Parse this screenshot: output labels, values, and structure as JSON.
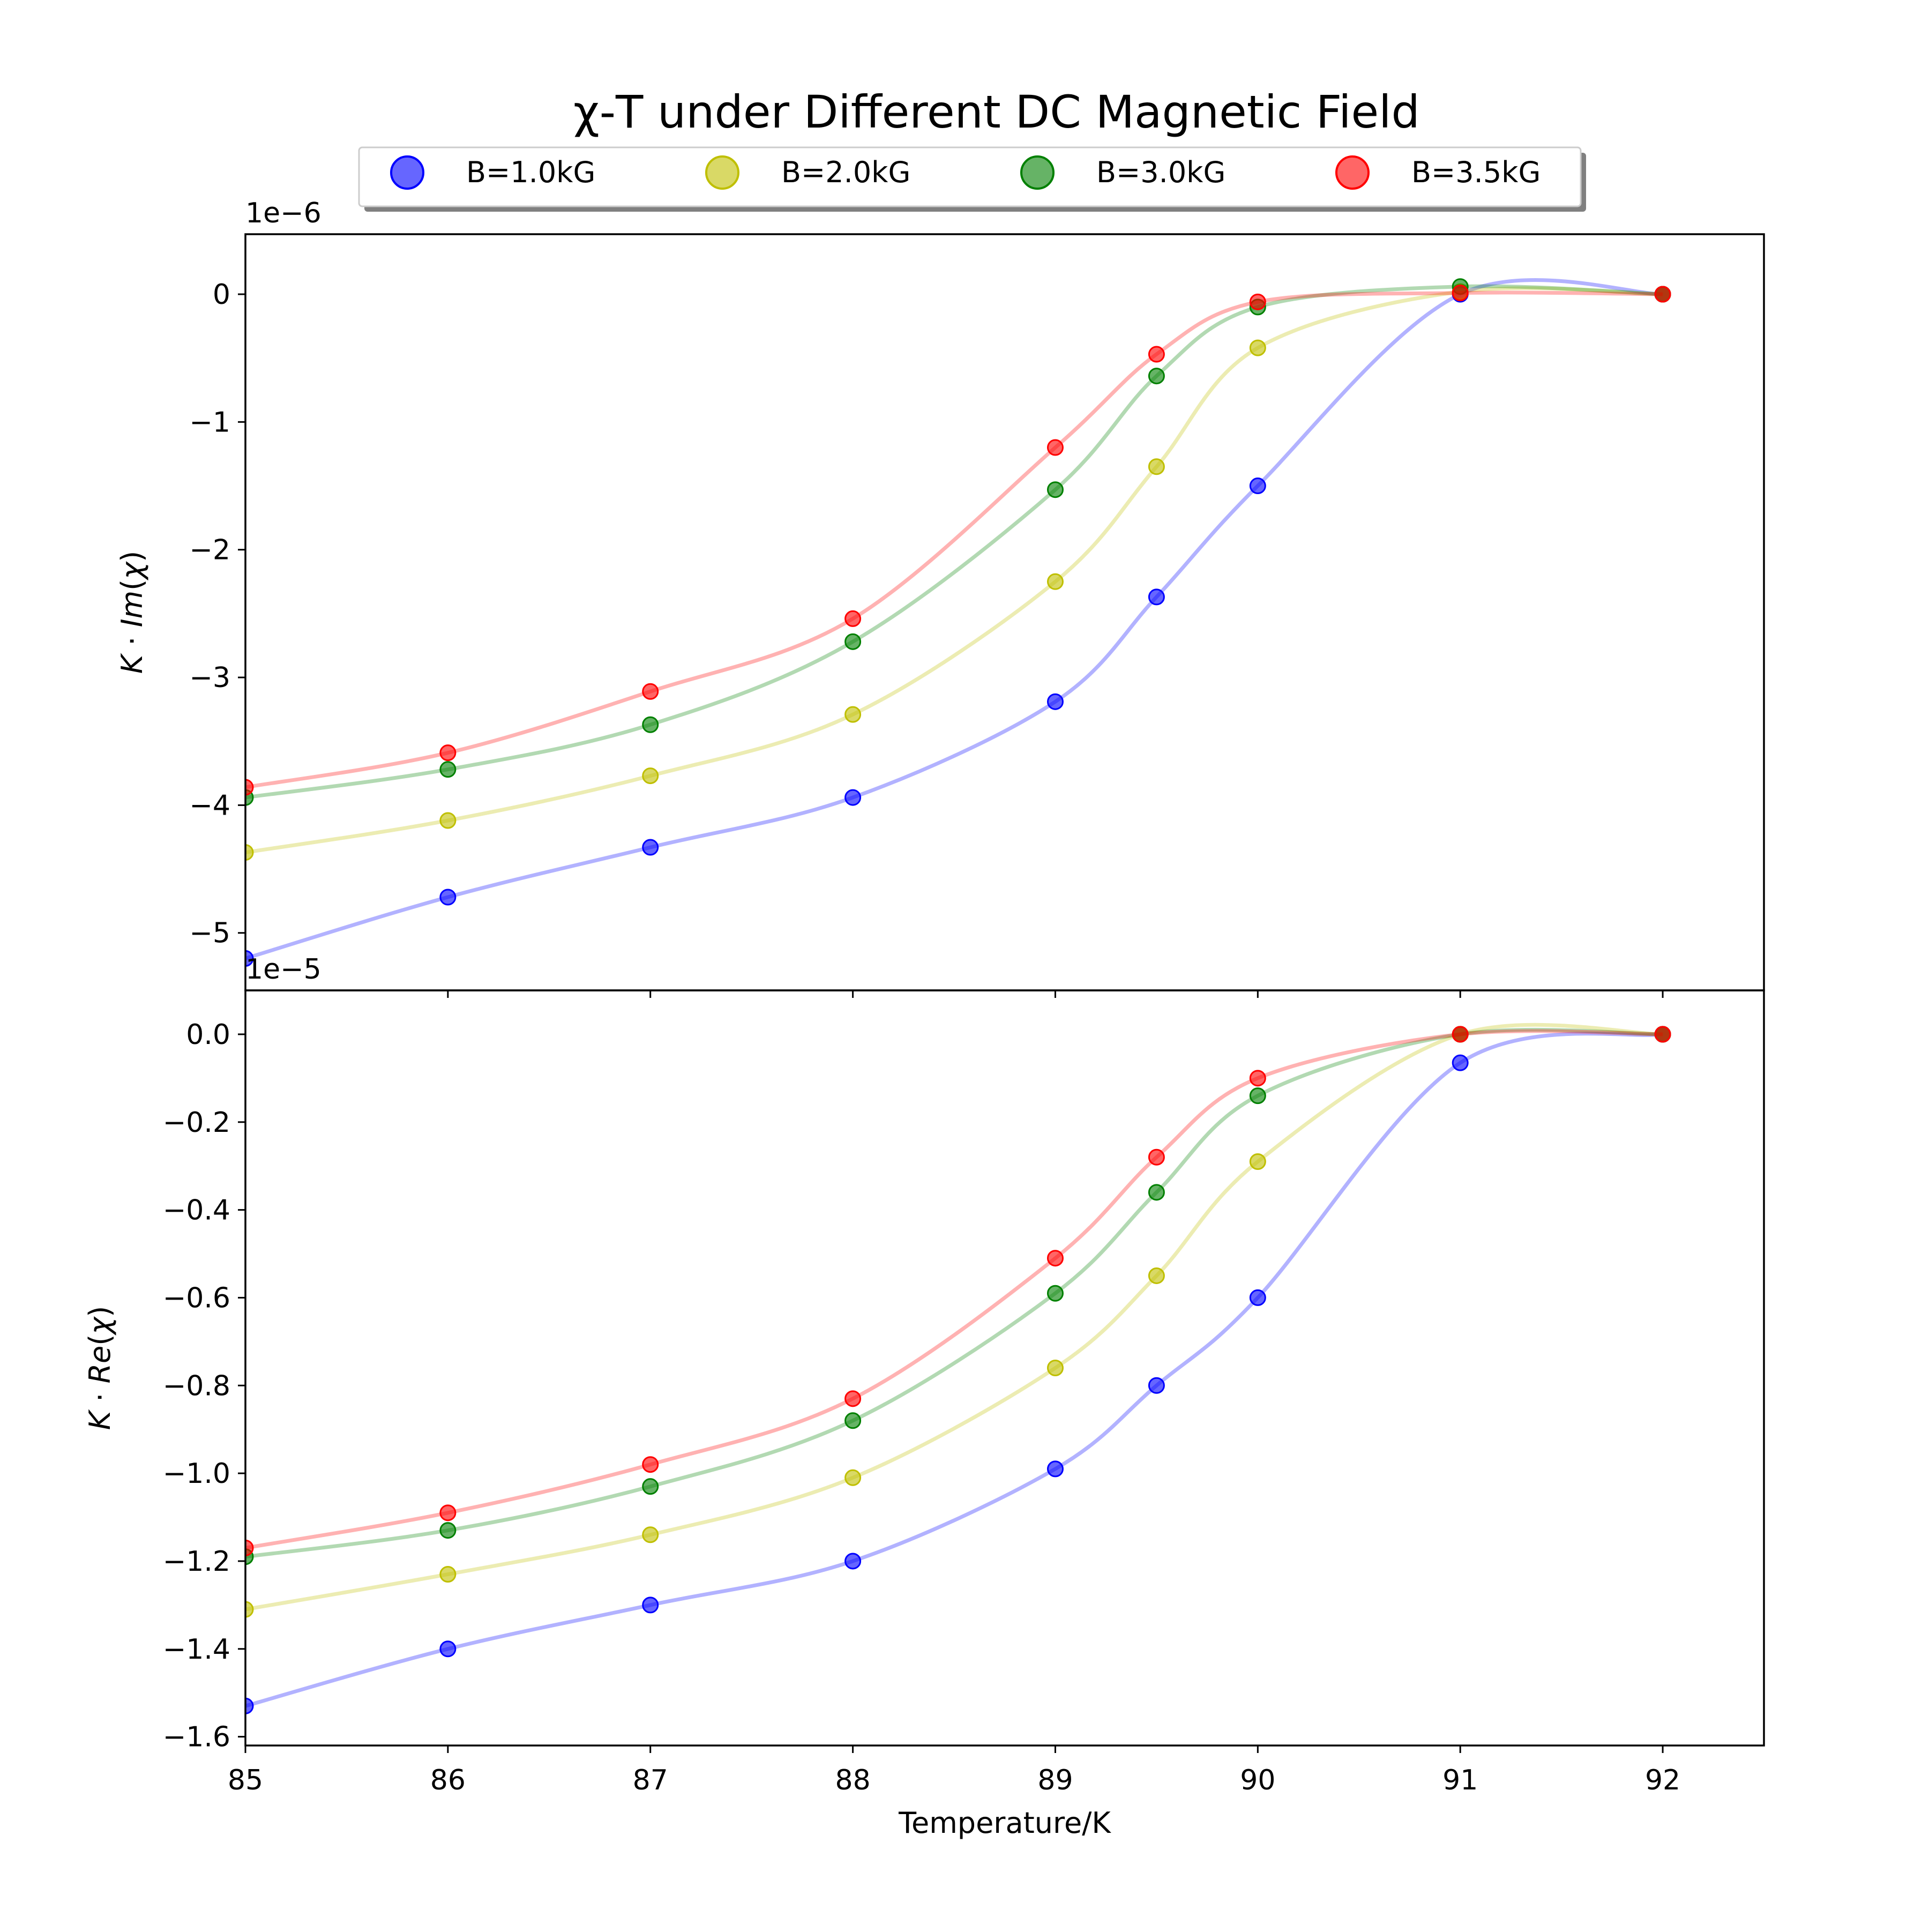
{
  "chart_data": {
    "type": "line",
    "title": "χ-T under Different DC Magnetic Field",
    "xlabel": "Temperature/K",
    "xlim": [
      85,
      92.5
    ],
    "x_ticks": [
      85,
      86,
      87,
      88,
      89,
      90,
      91,
      92
    ],
    "x_tick_labels": [
      "85",
      "86",
      "87",
      "88",
      "89",
      "90",
      "91",
      "92"
    ],
    "legend": {
      "placement": "top-center, above plots",
      "entries": [
        "B=1.0kG",
        "B=2.0kG",
        "B=3.0kG",
        "B=3.5kG"
      ]
    },
    "colors": {
      "B=1.0kG": "#0000ff",
      "B=2.0kG": "#bfbf00",
      "B=3.0kG": "#008000",
      "B=3.5kG": "#ff0000"
    },
    "x": [
      85,
      86,
      87,
      88,
      89,
      89.5,
      90,
      91,
      92
    ],
    "panels": [
      {
        "ylabel_plain": "K·Im(χ)",
        "offset_label": "1e−6",
        "ylim": [
          -5.45,
          0.47
        ],
        "y_ticks": [
          -5,
          -4,
          -3,
          -2,
          -1,
          0
        ],
        "y_tick_labels": [
          "−5",
          "−4",
          "−3",
          "−2",
          "−1",
          "0"
        ],
        "series": [
          {
            "name": "B=1.0kG",
            "values": [
              -5.2,
              -4.72,
              -4.33,
              -3.94,
              -3.19,
              -2.37,
              -1.5,
              0.0,
              0.0
            ]
          },
          {
            "name": "B=2.0kG",
            "values": [
              -4.37,
              -4.12,
              -3.77,
              -3.29,
              -2.25,
              -1.35,
              -0.42,
              0.02,
              0.0
            ]
          },
          {
            "name": "B=3.0kG",
            "values": [
              -3.94,
              -3.72,
              -3.37,
              -2.72,
              -1.53,
              -0.64,
              -0.1,
              0.06,
              0.0
            ]
          },
          {
            "name": "B=3.5kG",
            "values": [
              -3.86,
              -3.59,
              -3.11,
              -2.54,
              -1.2,
              -0.47,
              -0.06,
              0.01,
              0.0
            ]
          }
        ]
      },
      {
        "ylabel_plain": "K·Re(χ)",
        "offset_label": "1e−5",
        "ylim": [
          -1.62,
          0.1
        ],
        "y_ticks": [
          -1.6,
          -1.4,
          -1.2,
          -1.0,
          -0.8,
          -0.6,
          -0.4,
          -0.2,
          0.0
        ],
        "y_tick_labels": [
          "−1.6",
          "−1.4",
          "−1.2",
          "−1.0",
          "−0.8",
          "−0.6",
          "−0.4",
          "−0.2",
          "0.0"
        ],
        "series": [
          {
            "name": "B=1.0kG",
            "values": [
              -1.53,
              -1.4,
              -1.3,
              -1.2,
              -0.99,
              -0.8,
              -0.6,
              -0.065,
              0.0
            ]
          },
          {
            "name": "B=2.0kG",
            "values": [
              -1.31,
              -1.23,
              -1.14,
              -1.01,
              -0.76,
              -0.55,
              -0.29,
              0.0,
              0.0
            ]
          },
          {
            "name": "B=3.0kG",
            "values": [
              -1.19,
              -1.13,
              -1.03,
              -0.88,
              -0.59,
              -0.36,
              -0.14,
              0.0,
              0.0
            ]
          },
          {
            "name": "B=3.5kG",
            "values": [
              -1.17,
              -1.09,
              -0.98,
              -0.83,
              -0.51,
              -0.28,
              -0.1,
              0.0,
              0.0
            ]
          }
        ]
      }
    ]
  }
}
